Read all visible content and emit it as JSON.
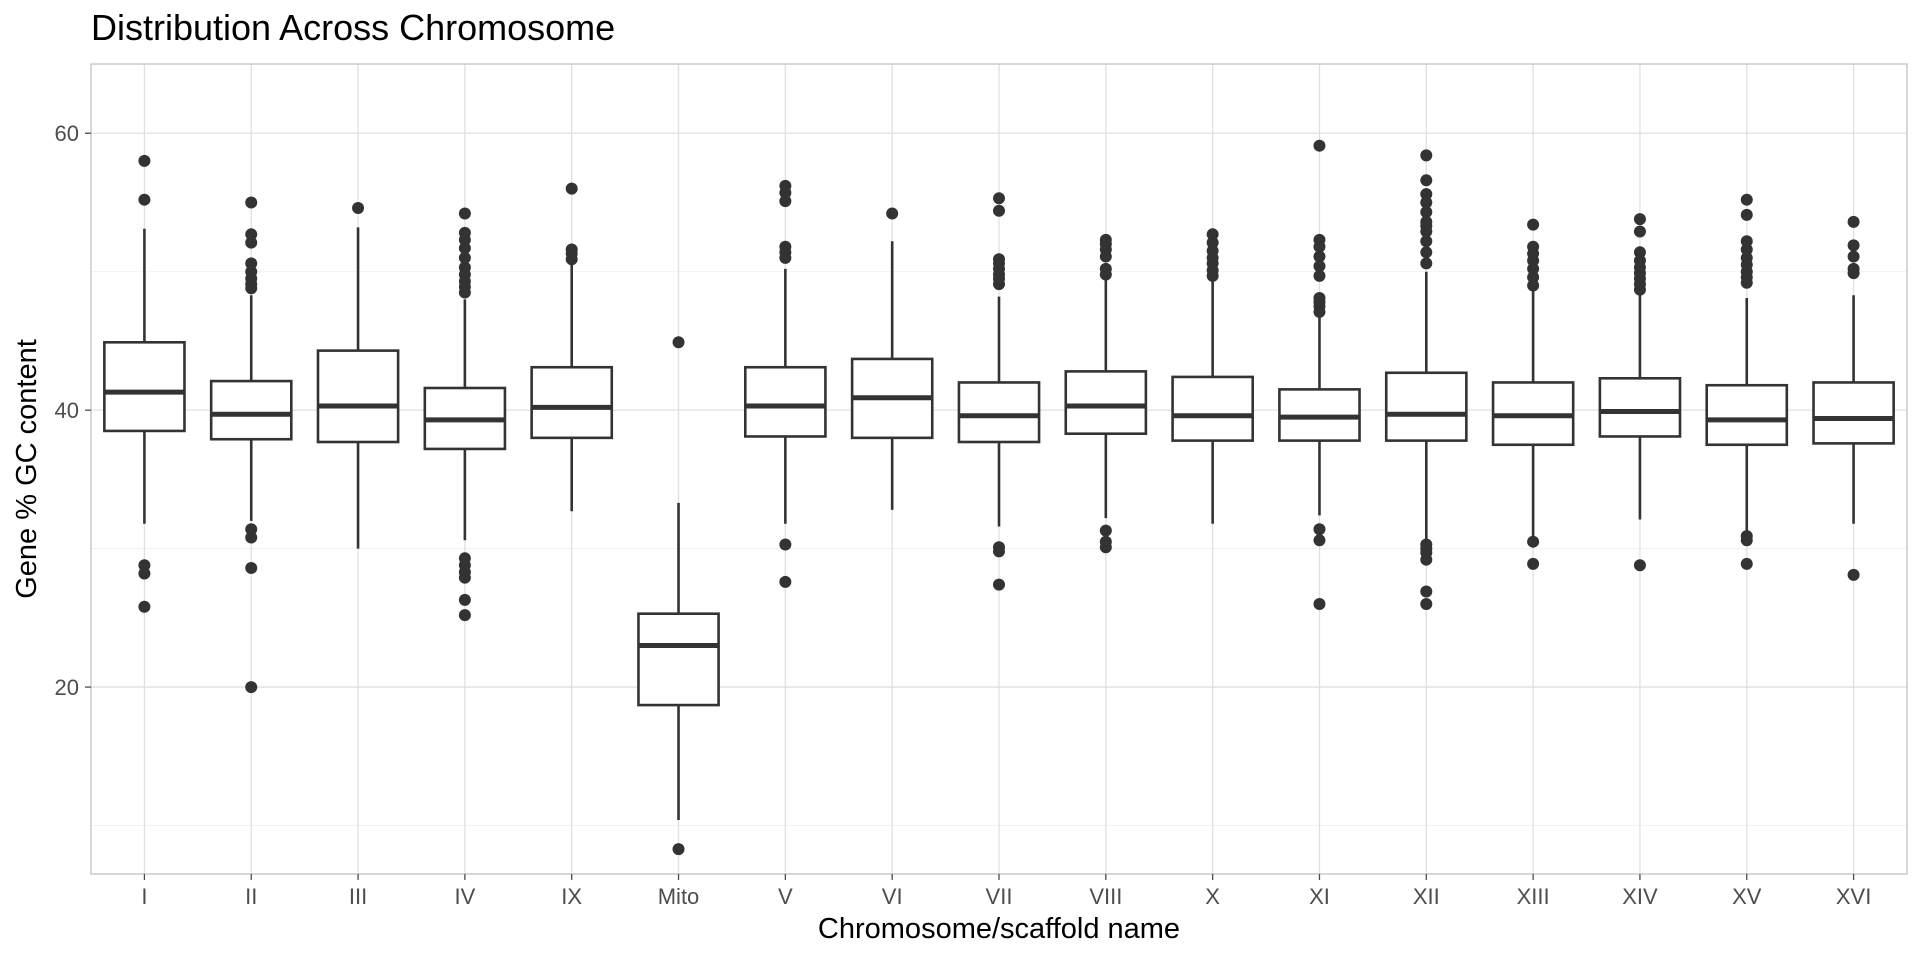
{
  "chart_data": {
    "type": "boxplot",
    "title": "Distribution Across Chromosome",
    "xlabel": "Chromosome/scaffold name",
    "ylabel": "Gene % GC content",
    "ylim": [
      6.5,
      65
    ],
    "yticks": [
      20,
      40,
      60
    ],
    "grid": true,
    "legend": "none",
    "colors": {
      "box_stroke": "#333333",
      "box_fill": "#ffffff",
      "grid": "#e0e0e0",
      "panel_border": "#c4c4c4"
    },
    "categories": [
      "I",
      "II",
      "III",
      "IV",
      "IX",
      "Mito",
      "V",
      "VI",
      "VII",
      "VIII",
      "X",
      "XI",
      "XII",
      "XIII",
      "XIV",
      "XV",
      "XVI"
    ],
    "boxes": [
      {
        "category": "I",
        "q1": 38.5,
        "median": 41.3,
        "q3": 44.9,
        "whisker_low": 31.8,
        "whisker_high": 53.1,
        "outliers": [
          58.0,
          55.2,
          28.8,
          28.2,
          25.8
        ]
      },
      {
        "category": "II",
        "q1": 37.9,
        "median": 39.7,
        "q3": 42.1,
        "whisker_low": 32.0,
        "whisker_high": 48.3,
        "outliers": [
          55.0,
          52.7,
          52.1,
          50.6,
          50.0,
          49.5,
          49.1,
          48.8,
          31.4,
          30.8,
          28.6,
          20.0
        ]
      },
      {
        "category": "III",
        "q1": 37.7,
        "median": 40.3,
        "q3": 44.3,
        "whisker_low": 30.0,
        "whisker_high": 53.2,
        "outliers": [
          54.6
        ]
      },
      {
        "category": "IV",
        "q1": 37.2,
        "median": 39.3,
        "q3": 41.6,
        "whisker_low": 30.6,
        "whisker_high": 48.0,
        "outliers": [
          54.2,
          52.8,
          52.3,
          51.7,
          51.0,
          50.3,
          49.8,
          49.3,
          48.9,
          48.5,
          29.3,
          28.8,
          28.3,
          27.9,
          26.3,
          25.2
        ]
      },
      {
        "category": "IX",
        "q1": 38.0,
        "median": 40.2,
        "q3": 43.1,
        "whisker_low": 32.7,
        "whisker_high": 50.5,
        "outliers": [
          56.0,
          51.6,
          51.3,
          50.9
        ]
      },
      {
        "category": "Mito",
        "q1": 18.7,
        "median": 23.0,
        "q3": 25.3,
        "whisker_low": 10.4,
        "whisker_high": 33.3,
        "outliers": [
          44.9,
          8.3
        ]
      },
      {
        "category": "V",
        "q1": 38.1,
        "median": 40.3,
        "q3": 43.1,
        "whisker_low": 31.8,
        "whisker_high": 50.2,
        "outliers": [
          56.2,
          55.7,
          55.1,
          51.8,
          51.4,
          51.0,
          30.3,
          27.6
        ]
      },
      {
        "category": "VI",
        "q1": 38.0,
        "median": 40.9,
        "q3": 43.7,
        "whisker_low": 32.8,
        "whisker_high": 52.2,
        "outliers": [
          54.2
        ]
      },
      {
        "category": "VII",
        "q1": 37.7,
        "median": 39.6,
        "q3": 42.0,
        "whisker_low": 31.6,
        "whisker_high": 48.2,
        "outliers": [
          55.3,
          54.4,
          50.9,
          50.6,
          50.2,
          49.8,
          49.5,
          49.1,
          30.1,
          29.8,
          27.4
        ]
      },
      {
        "category": "VIII",
        "q1": 38.3,
        "median": 40.3,
        "q3": 42.8,
        "whisker_low": 32.2,
        "whisker_high": 49.8,
        "outliers": [
          52.3,
          52.0,
          51.6,
          51.1,
          50.2,
          49.8,
          31.3,
          30.5,
          30.1
        ]
      },
      {
        "category": "X",
        "q1": 37.8,
        "median": 39.6,
        "q3": 42.4,
        "whisker_low": 31.8,
        "whisker_high": 49.6,
        "outliers": [
          52.7,
          52.1,
          51.5,
          51.0,
          50.6,
          50.1,
          49.7
        ]
      },
      {
        "category": "XI",
        "q1": 37.8,
        "median": 39.5,
        "q3": 41.5,
        "whisker_low": 32.4,
        "whisker_high": 47.0,
        "outliers": [
          59.1,
          52.3,
          51.8,
          51.1,
          50.4,
          49.7,
          48.1,
          47.8,
          47.5,
          47.1,
          31.4,
          30.6,
          26.0
        ]
      },
      {
        "category": "XII",
        "q1": 37.8,
        "median": 39.7,
        "q3": 42.7,
        "whisker_low": 30.4,
        "whisker_high": 50.0,
        "outliers": [
          58.4,
          56.6,
          55.6,
          55.0,
          54.3,
          53.6,
          53.3,
          52.9,
          52.2,
          51.4,
          50.6,
          30.3,
          30.0,
          29.7,
          29.2,
          26.9,
          26.0
        ]
      },
      {
        "category": "XIII",
        "q1": 37.5,
        "median": 39.6,
        "q3": 42.0,
        "whisker_low": 30.9,
        "whisker_high": 48.7,
        "outliers": [
          53.4,
          51.8,
          51.3,
          50.8,
          50.2,
          49.6,
          49.0,
          30.5,
          28.9
        ]
      },
      {
        "category": "XIV",
        "q1": 38.1,
        "median": 39.9,
        "q3": 42.3,
        "whisker_low": 32.1,
        "whisker_high": 48.3,
        "outliers": [
          53.8,
          52.9,
          51.4,
          50.8,
          50.3,
          49.9,
          49.5,
          49.1,
          48.7,
          28.8
        ]
      },
      {
        "category": "XV",
        "q1": 37.5,
        "median": 39.3,
        "q3": 41.8,
        "whisker_low": 31.2,
        "whisker_high": 48.1,
        "outliers": [
          55.2,
          54.1,
          52.2,
          51.6,
          51.0,
          50.5,
          50.0,
          49.6,
          49.2,
          30.9,
          30.6,
          28.9
        ]
      },
      {
        "category": "XVI",
        "q1": 37.6,
        "median": 39.4,
        "q3": 42.0,
        "whisker_low": 31.8,
        "whisker_high": 48.3,
        "outliers": [
          53.6,
          51.9,
          51.1,
          50.2,
          49.9,
          28.1
        ]
      }
    ]
  }
}
